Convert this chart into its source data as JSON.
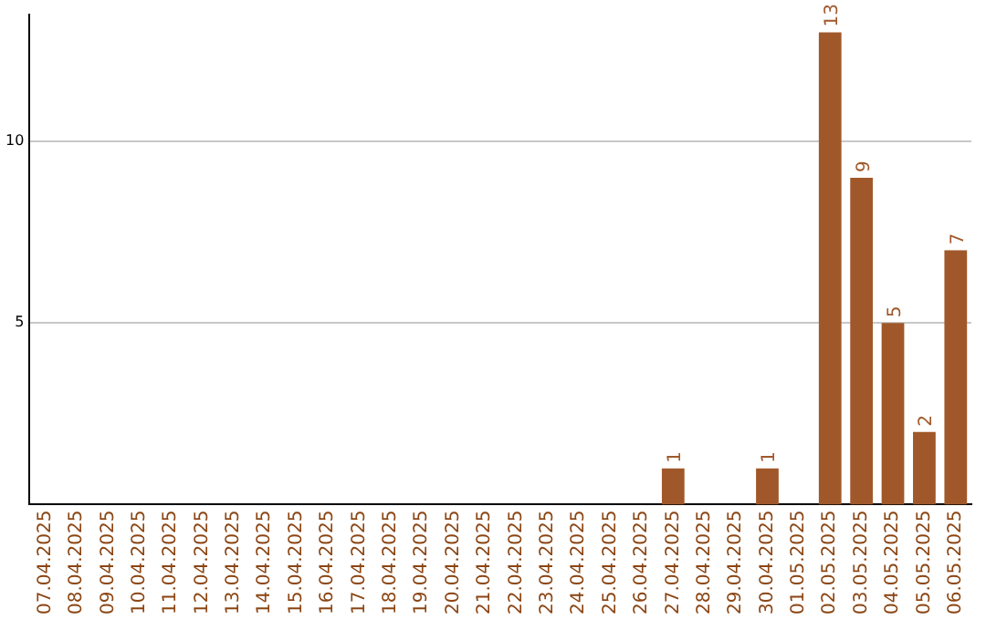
{
  "chart_data": {
    "type": "bar",
    "categories": [
      "07.04.2025",
      "08.04.2025",
      "09.04.2025",
      "10.04.2025",
      "11.04.2025",
      "12.04.2025",
      "13.04.2025",
      "14.04.2025",
      "15.04.2025",
      "16.04.2025",
      "17.04.2025",
      "18.04.2025",
      "19.04.2025",
      "20.04.2025",
      "21.04.2025",
      "22.04.2025",
      "23.04.2025",
      "24.04.2025",
      "25.04.2025",
      "26.04.2025",
      "27.04.2025",
      "28.04.2025",
      "29.04.2025",
      "30.04.2025",
      "01.05.2025",
      "02.05.2025",
      "03.05.2025",
      "04.05.2025",
      "05.05.2025",
      "06.05.2025"
    ],
    "values": [
      0,
      0,
      0,
      0,
      0,
      0,
      0,
      0,
      0,
      0,
      0,
      0,
      0,
      0,
      0,
      0,
      0,
      0,
      0,
      0,
      1,
      0,
      0,
      1,
      0,
      13,
      9,
      5,
      2,
      7
    ],
    "value_labels": [
      null,
      null,
      null,
      null,
      null,
      null,
      null,
      null,
      null,
      null,
      null,
      null,
      null,
      null,
      null,
      null,
      null,
      null,
      null,
      null,
      "1",
      null,
      null,
      "1",
      null,
      "13",
      "9",
      "5",
      "2",
      "7"
    ],
    "color": "#a0582a",
    "ylim": [
      0,
      13.5
    ],
    "yticks": [
      5,
      10
    ],
    "grid": "y",
    "legend": false
  }
}
